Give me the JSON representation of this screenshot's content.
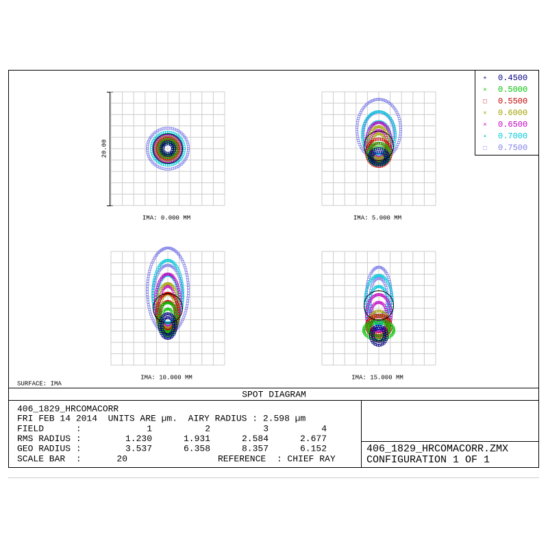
{
  "legend": [
    {
      "label": "0.4500",
      "color": "#00007f"
    },
    {
      "label": "0.5000",
      "color": "#00c000"
    },
    {
      "label": "0.5500",
      "color": "#c00000"
    },
    {
      "label": "0.6000",
      "color": "#a0a000"
    },
    {
      "label": "0.6500",
      "color": "#c000c0"
    },
    {
      "label": "0.7000",
      "color": "#00c8d8"
    },
    {
      "label": "0.7500",
      "color": "#8080e8"
    }
  ],
  "panels": [
    {
      "label": "IMA: 0.000 MM"
    },
    {
      "label": "IMA: 5.000 MM"
    },
    {
      "label": "IMA: 10.000 MM"
    },
    {
      "label": "IMA: 15.000 MM"
    }
  ],
  "scale_label": "20.00",
  "surface": "SURFACE: IMA",
  "title": "SPOT DIAGRAM",
  "info": {
    "lens": "406_1829_HRCOMACORR",
    "date_line": "FRI FEB 14 2014  UNITS ARE µm.  AIRY RADIUS : 2.598 µm",
    "rows": [
      {
        "label": "FIELD      :",
        "values": [
          "1",
          "2",
          "3",
          "4"
        ]
      },
      {
        "label": "RMS RADIUS :",
        "values": [
          "1.230",
          "1.931",
          "2.584",
          "2.677"
        ]
      },
      {
        "label": "GEO RADIUS :",
        "values": [
          "3.537",
          "6.358",
          "8.357",
          "6.152"
        ]
      }
    ],
    "scale_row": {
      "label": "SCALE BAR  :",
      "value": "20",
      "reference": "REFERENCE  : CHIEF RAY"
    },
    "file": "406_1829_HRCOMACORR.ZMX",
    "configuration": "CONFIGURATION 1 OF 1"
  }
}
